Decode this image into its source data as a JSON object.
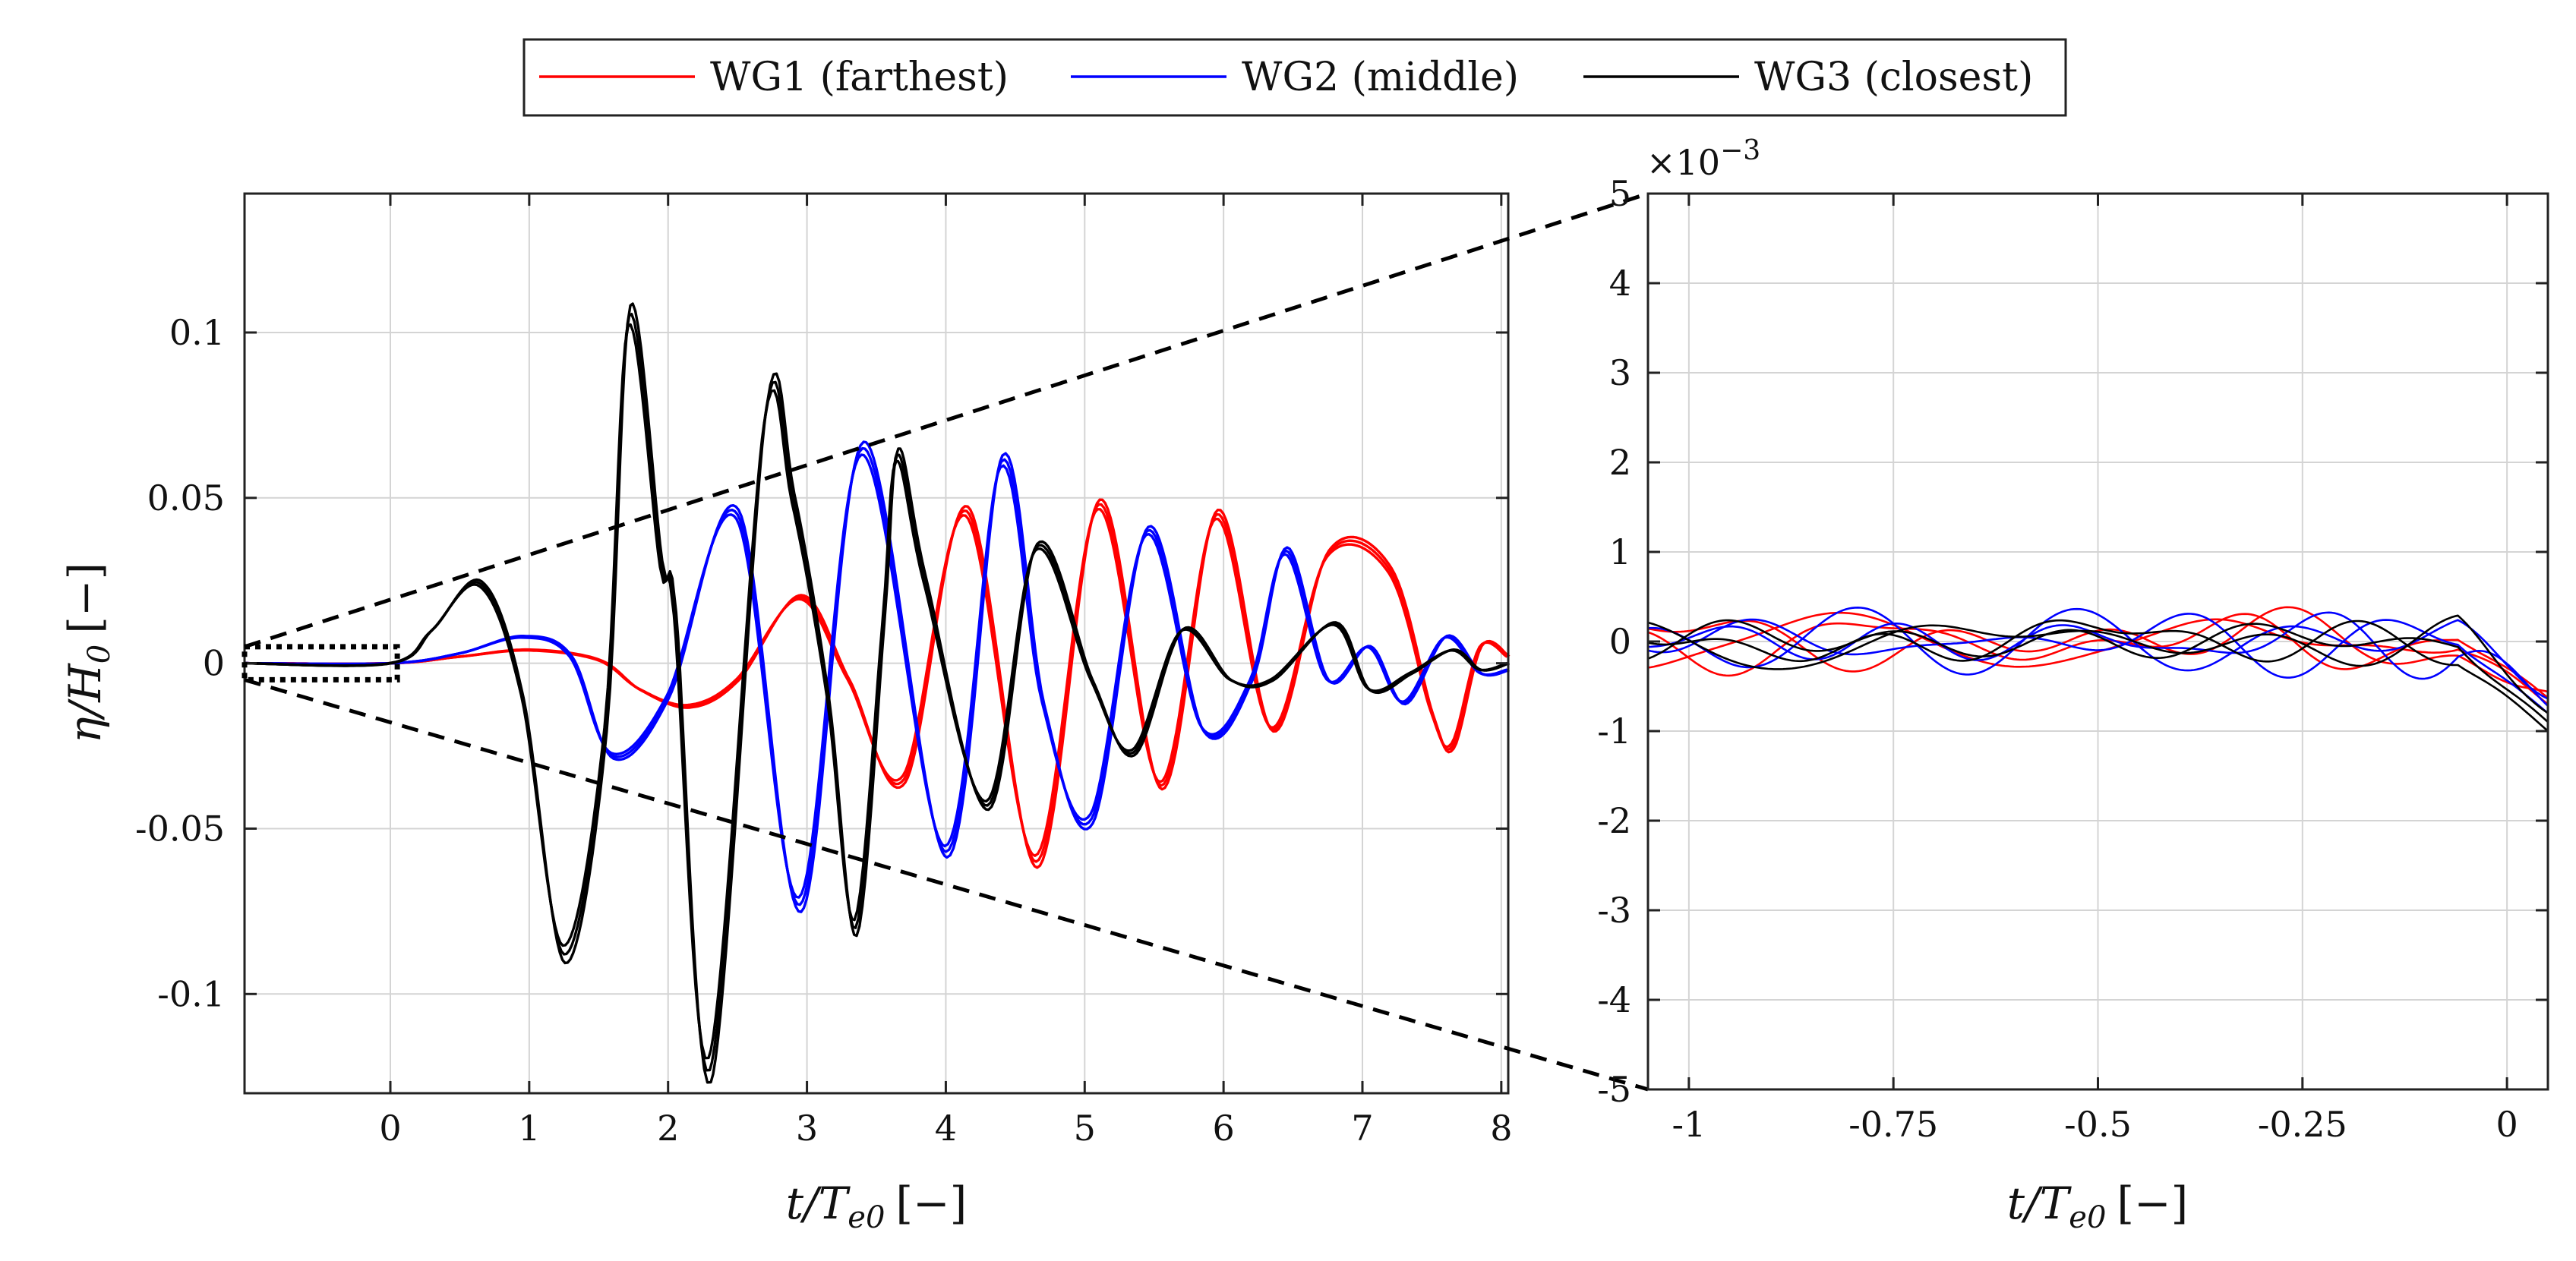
{
  "chart_data": [
    {
      "type": "line",
      "panel": "main",
      "xlabel_main": "t/T",
      "xlabel_sub": "e0",
      "xlabel_unit": "[−]",
      "ylabel_main": "η/H",
      "ylabel_sub": "0",
      "ylabel_unit": "[−]",
      "xlim": [
        -1.05,
        8.05
      ],
      "ylim": [
        -0.13,
        0.142
      ],
      "xticks": [
        0,
        1,
        2,
        3,
        4,
        5,
        6,
        7,
        8
      ],
      "xtick_labels": [
        "0",
        "1",
        "2",
        "3",
        "4",
        "5",
        "6",
        "7",
        "8"
      ],
      "yticks": [
        -0.1,
        -0.05,
        0,
        0.05,
        0.1
      ],
      "ytick_labels": [
        "-0.1",
        "-0.05",
        "0",
        "0.05",
        "0.1"
      ],
      "grid": true,
      "zoom_box": {
        "x": [
          -1.05,
          0.05
        ],
        "y": [
          -0.005,
          0.005
        ]
      },
      "series": [
        {
          "name": "WG1 (farthest)",
          "color": "#ff0000",
          "repeats": 3,
          "x": [
            -1.05,
            0,
            0.5,
            1,
            1.5,
            1.8,
            2.15,
            2.5,
            2.95,
            3.3,
            3.7,
            4.15,
            4.65,
            5.1,
            5.55,
            5.95,
            6.35,
            6.75,
            7.2,
            7.5,
            7.65,
            7.85,
            8.05
          ],
          "y": [
            0,
            0,
            0.002,
            0.004,
            0.001,
            -0.008,
            -0.013,
            -0.005,
            0.02,
            -0.005,
            -0.035,
            0.046,
            -0.06,
            0.048,
            -0.037,
            0.045,
            -0.02,
            0.033,
            0.028,
            -0.015,
            -0.025,
            0.005,
            0.002
          ]
        },
        {
          "name": "WG2 (middle)",
          "color": "#0000ff",
          "repeats": 3,
          "x": [
            -1.05,
            0,
            0.5,
            0.95,
            1.3,
            1.6,
            2,
            2.5,
            2.95,
            3.4,
            4,
            4.4,
            4.7,
            5.05,
            5.45,
            5.85,
            6.2,
            6.45,
            6.75,
            7.05,
            7.3,
            7.6,
            7.85,
            8.05
          ],
          "y": [
            0,
            0,
            0.003,
            0.008,
            0.002,
            -0.028,
            -0.01,
            0.045,
            -0.073,
            0.065,
            -0.057,
            0.061,
            -0.012,
            -0.047,
            0.04,
            -0.02,
            -0.005,
            0.034,
            -0.005,
            0.005,
            -0.012,
            0.008,
            -0.003,
            -0.002
          ]
        },
        {
          "name": "WG3 (closest)",
          "color": "#000000",
          "repeats": 3,
          "x": [
            -1.05,
            0,
            0.3,
            0.65,
            0.95,
            1.25,
            1.55,
            1.72,
            1.95,
            2.05,
            2.3,
            2.7,
            2.9,
            3.15,
            3.35,
            3.55,
            3.65,
            3.85,
            4.3,
            4.65,
            5.05,
            5.35,
            5.7,
            6.05,
            6.35,
            6.8,
            7.05,
            7.35,
            7.65,
            7.85,
            8.05
          ],
          "y": [
            0,
            0,
            0.01,
            0.024,
            -0.01,
            -0.088,
            -0.02,
            0.105,
            0.03,
            0.015,
            -0.123,
            0.075,
            0.05,
            -0.01,
            -0.08,
            0.012,
            0.063,
            0.025,
            -0.043,
            0.035,
            -0.005,
            -0.027,
            0.01,
            -0.005,
            -0.005,
            0.012,
            -0.008,
            -0.003,
            0.004,
            -0.002,
            0
          ]
        }
      ],
      "legend": {
        "placement": "top-center",
        "entries": [
          {
            "label": "WG1 (farthest)",
            "color": "#ff0000"
          },
          {
            "label": "WG2 (middle)",
            "color": "#0000ff"
          },
          {
            "label": "WG3 (closest)",
            "color": "#000000"
          }
        ]
      }
    },
    {
      "type": "line",
      "panel": "zoom",
      "xlabel_main": "t/T",
      "xlabel_sub": "e0",
      "xlabel_unit": "[−]",
      "exponent_base": "×10",
      "exponent_power": "−3",
      "xlim": [
        -1.05,
        0.05
      ],
      "ylim": [
        -5,
        5
      ],
      "xticks": [
        -1,
        -0.75,
        -0.5,
        -0.25,
        0
      ],
      "xtick_labels": [
        "-1",
        "-0.75",
        "-0.5",
        "-0.25",
        "0"
      ],
      "yticks": [
        -5,
        -4,
        -3,
        -2,
        -1,
        0,
        1,
        2,
        3,
        4,
        5
      ],
      "ytick_labels": [
        "-5",
        "-4",
        "-3",
        "-2",
        "-1",
        "0",
        "1",
        "2",
        "3",
        "4",
        "5"
      ],
      "grid": true,
      "noise_series": [
        {
          "name": "WG1 (farthest)",
          "color": "#ff0000",
          "repeats": 3,
          "amplitude": 0.25,
          "end_value": -0.7
        },
        {
          "name": "WG2 (middle)",
          "color": "#0000ff",
          "repeats": 3,
          "amplitude": 0.22,
          "end_value": -0.8
        },
        {
          "name": "WG3 (closest)",
          "color": "#000000",
          "repeats": 3,
          "amplitude": 0.18,
          "end_value": -1.0
        }
      ]
    }
  ]
}
